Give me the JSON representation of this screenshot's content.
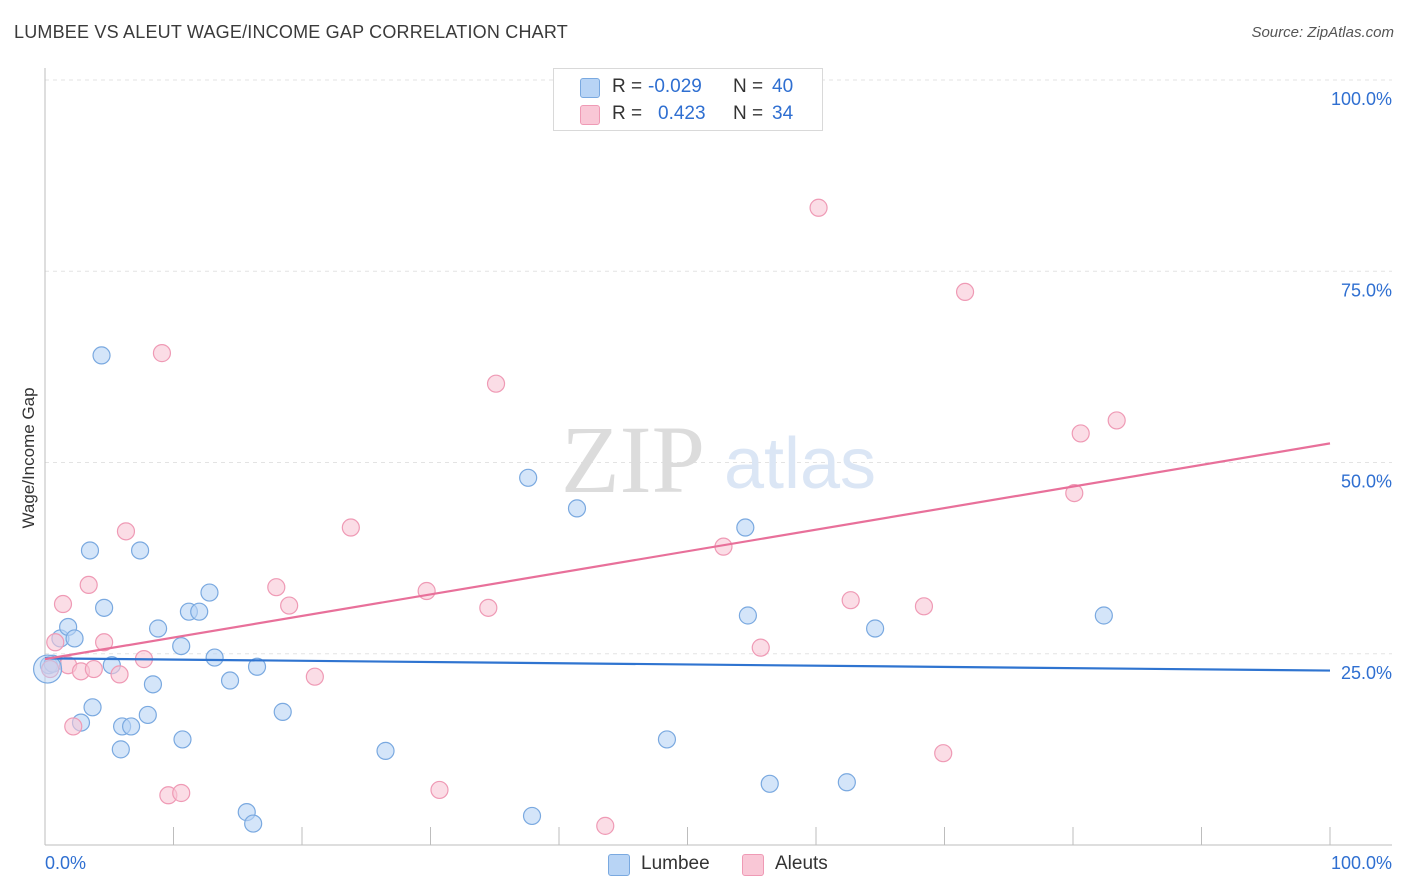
{
  "header": {
    "title": "LUMBEE VS ALEUT WAGE/INCOME GAP CORRELATION CHART",
    "source": "Source: ZipAtlas.com"
  },
  "legend_top": {
    "rows": [
      {
        "r_label": "R =",
        "r_value": "-0.029",
        "n_label": "N =",
        "n_value": "40"
      },
      {
        "r_label": "R =",
        "r_value": "0.423",
        "n_label": "N =",
        "n_value": "34"
      }
    ]
  },
  "legend_bottom": {
    "items": [
      {
        "label": "Lumbee"
      },
      {
        "label": "Aleuts"
      }
    ]
  },
  "watermark": {
    "part1": "ZIP",
    "part2": "atlas"
  },
  "colors": {
    "lumbee_fill": "#b8d4f5",
    "lumbee_stroke": "#7aa9e0",
    "lumbee_line": "#2f74d0",
    "aleut_fill": "#f9c7d6",
    "aleut_stroke": "#ef9ab5",
    "aleut_line": "#e8709a",
    "axis_label": "#2f6fd1",
    "grid": "#e3e3e3"
  },
  "chart_data": {
    "type": "scatter",
    "title": "LUMBEE VS ALEUT WAGE/INCOME GAP CORRELATION CHART",
    "xlabel": "",
    "ylabel": "Wage/Income Gap",
    "xlim": [
      0,
      100
    ],
    "ylim": [
      0,
      100
    ],
    "x_tick_labels": [
      {
        "value": 0,
        "label": "0.0%"
      },
      {
        "value": 100,
        "label": "100.0%"
      }
    ],
    "y_tick_labels": [
      {
        "value": 25,
        "label": "25.0%"
      },
      {
        "value": 50,
        "label": "50.0%"
      },
      {
        "value": 75,
        "label": "75.0%"
      },
      {
        "value": 100,
        "label": "100.0%"
      }
    ],
    "legend_position": "top-center",
    "series": [
      {
        "name": "Lumbee",
        "r": -0.029,
        "n": 40,
        "trend": {
          "y_at_x0": 24.4,
          "y_at_x100": 22.8
        },
        "points": [
          [
            0.3,
            23.5
          ],
          [
            0.6,
            23.7
          ],
          [
            1.2,
            27.0
          ],
          [
            1.8,
            28.5
          ],
          [
            2.3,
            27.0
          ],
          [
            2.8,
            16.0
          ],
          [
            3.5,
            38.5
          ],
          [
            3.7,
            18.0
          ],
          [
            4.4,
            64.0
          ],
          [
            4.6,
            31.0
          ],
          [
            5.2,
            23.5
          ],
          [
            5.9,
            12.5
          ],
          [
            6.0,
            15.5
          ],
          [
            6.7,
            15.5
          ],
          [
            7.4,
            38.5
          ],
          [
            8.0,
            17.0
          ],
          [
            8.4,
            21.0
          ],
          [
            8.8,
            28.3
          ],
          [
            10.6,
            26.0
          ],
          [
            10.7,
            13.8
          ],
          [
            11.2,
            30.5
          ],
          [
            12.0,
            30.5
          ],
          [
            12.8,
            33.0
          ],
          [
            13.2,
            24.5
          ],
          [
            14.4,
            21.5
          ],
          [
            15.7,
            4.3
          ],
          [
            16.2,
            2.8
          ],
          [
            16.5,
            23.3
          ],
          [
            18.5,
            17.4
          ],
          [
            26.5,
            12.3
          ],
          [
            37.6,
            48.0
          ],
          [
            37.9,
            3.8
          ],
          [
            41.4,
            44.0
          ],
          [
            48.4,
            13.8
          ],
          [
            54.5,
            41.5
          ],
          [
            54.7,
            30.0
          ],
          [
            56.4,
            8.0
          ],
          [
            62.4,
            8.2
          ],
          [
            64.6,
            28.3
          ],
          [
            82.4,
            30.0
          ]
        ]
      },
      {
        "name": "Aleuts",
        "r": 0.423,
        "n": 34,
        "trend": {
          "y_at_x0": 24.3,
          "y_at_x100": 52.5
        },
        "points": [
          [
            0.4,
            23.0
          ],
          [
            0.8,
            26.5
          ],
          [
            1.4,
            31.5
          ],
          [
            1.8,
            23.5
          ],
          [
            2.2,
            15.5
          ],
          [
            2.8,
            22.7
          ],
          [
            3.4,
            34.0
          ],
          [
            3.8,
            23.0
          ],
          [
            4.6,
            26.5
          ],
          [
            5.8,
            22.3
          ],
          [
            6.3,
            41.0
          ],
          [
            7.7,
            24.3
          ],
          [
            9.1,
            64.3
          ],
          [
            9.6,
            6.5
          ],
          [
            10.6,
            6.8
          ],
          [
            18.0,
            33.7
          ],
          [
            19.0,
            31.3
          ],
          [
            21.0,
            22.0
          ],
          [
            23.8,
            41.5
          ],
          [
            29.7,
            33.2
          ],
          [
            30.7,
            7.2
          ],
          [
            34.5,
            31.0
          ],
          [
            35.1,
            60.3
          ],
          [
            43.6,
            2.5
          ],
          [
            52.8,
            39.0
          ],
          [
            55.7,
            25.8
          ],
          [
            60.2,
            83.3
          ],
          [
            62.7,
            32.0
          ],
          [
            68.4,
            31.2
          ],
          [
            69.9,
            12.0
          ],
          [
            71.6,
            72.3
          ],
          [
            80.1,
            46.0
          ],
          [
            80.6,
            53.8
          ],
          [
            83.4,
            55.5
          ]
        ]
      }
    ]
  }
}
